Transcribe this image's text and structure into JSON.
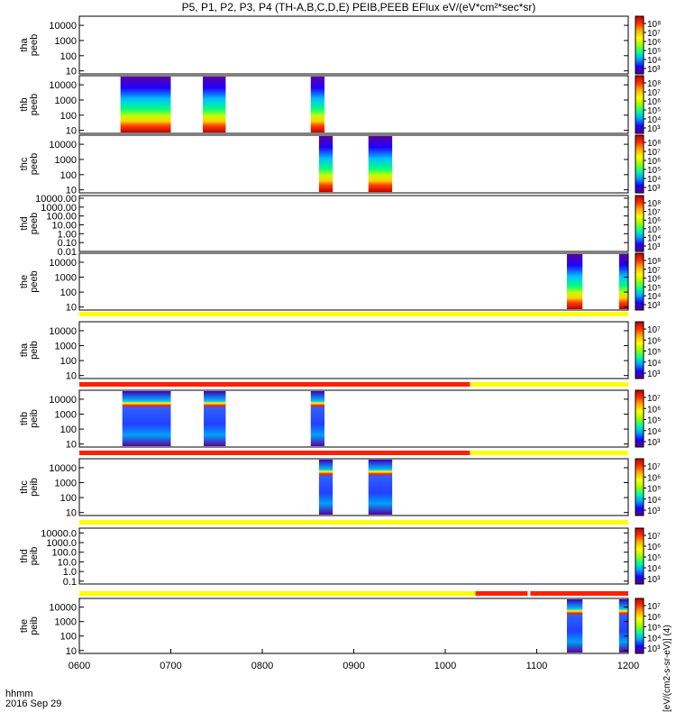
{
  "chart_data": {
    "type": "heatmap",
    "title": "P5, P1, P2, P3, P4 (TH-A,B,C,D,E) PEIB,PEEB EFlux eV/(eV*cm²*sec*sr)",
    "x_ticks": [
      "0600",
      "0700",
      "0800",
      "0900",
      "1000",
      "1100",
      "1200"
    ],
    "xlim": [
      600,
      1200
    ],
    "xlabel": "hhmm",
    "date": "2016 Sep 29",
    "colorbar_label": "[eV/(cm2-s-sr-eV)] (4)",
    "colormap": [
      "#5a0080",
      "#1a00ff",
      "#00a0ff",
      "#00ffa0",
      "#9aff00",
      "#ffff00",
      "#ffb000",
      "#ff3000",
      "#c00000"
    ],
    "panels": [
      {
        "name": "tha peeb",
        "ylabel": [
          "tha",
          "peeb"
        ],
        "yticks": [
          "10000",
          "1000",
          "100",
          "10"
        ],
        "ylog": [
          0.8,
          4.6
        ],
        "cbar_ticks": [
          "10⁸",
          "10⁷",
          "10⁶",
          "10⁵",
          "10⁴",
          "10³"
        ],
        "mode_bar": null,
        "blocks": []
      },
      {
        "name": "thb peeb",
        "ylabel": [
          "thb",
          "peeb"
        ],
        "yticks": [
          "10000",
          "1000",
          "100",
          "10"
        ],
        "ylog": [
          0.8,
          4.6
        ],
        "cbar_ticks": [
          "10⁸",
          "10⁷",
          "10⁶",
          "10⁵",
          "10⁴",
          "10³"
        ],
        "mode_bar": null,
        "blocks": [
          {
            "t0": 645,
            "t1": 700
          },
          {
            "t0": 735,
            "t1": 760
          },
          {
            "t0": 853,
            "t1": 868
          }
        ]
      },
      {
        "name": "thc peeb",
        "ylabel": [
          "thc",
          "peeb"
        ],
        "yticks": [
          "10000",
          "1000",
          "100",
          "10"
        ],
        "ylog": [
          0.8,
          4.6
        ],
        "cbar_ticks": [
          "10⁸",
          "10⁷",
          "10⁶",
          "10⁵",
          "10⁴",
          "10³"
        ],
        "mode_bar": null,
        "blocks": [
          {
            "t0": 862,
            "t1": 877
          },
          {
            "t0": 916,
            "t1": 942
          }
        ]
      },
      {
        "name": "thd peeb",
        "ylabel": [
          "thd",
          "peeb"
        ],
        "yticks": [
          "10000.00",
          "1000.00",
          "100.00",
          "10.00",
          "1.00",
          "0.10",
          "0.01"
        ],
        "ylog": [
          -2,
          4.3
        ],
        "cbar_ticks": [
          "10⁸",
          "10⁷",
          "10⁶",
          "10⁵",
          "10⁴",
          "10³"
        ],
        "mode_bar": null,
        "blocks": []
      },
      {
        "name": "the peeb",
        "ylabel": [
          "the",
          "peeb"
        ],
        "yticks": [
          "10000",
          "1000",
          "100",
          "10"
        ],
        "ylog": [
          0.8,
          4.6
        ],
        "cbar_ticks": [
          "10⁸",
          "10⁷",
          "10⁶",
          "10⁵",
          "10⁴",
          "10³"
        ],
        "mode_bar": null,
        "blocks": [
          {
            "t0": 1133,
            "t1": 1150
          },
          {
            "t0": 1190,
            "t1": 1200
          }
        ]
      },
      {
        "name": "tha peib",
        "ylabel": [
          "tha",
          "peib"
        ],
        "yticks": [
          "10000",
          "1000",
          "100",
          "10"
        ],
        "ylog": [
          0.8,
          4.6
        ],
        "cbar_ticks": [
          "10⁷",
          "10⁶",
          "10⁵",
          "10⁴",
          "10³"
        ],
        "mode_bar": [
          {
            "t0": 600,
            "t1": 1200,
            "color": "#ffff00"
          }
        ],
        "blocks": []
      },
      {
        "name": "thb peib",
        "ylabel": [
          "thb",
          "peib"
        ],
        "yticks": [
          "10000",
          "1000",
          "100",
          "10"
        ],
        "ylog": [
          0.8,
          4.6
        ],
        "cbar_ticks": [
          "10⁷",
          "10⁶",
          "10⁵",
          "10⁴",
          "10³"
        ],
        "mode_bar": [
          {
            "t0": 600,
            "t1": 1027,
            "color": "#ff2000"
          },
          {
            "t0": 1027,
            "t1": 1200,
            "color": "#ffff00"
          }
        ],
        "blocks": [
          {
            "t0": 647,
            "t1": 700
          },
          {
            "t0": 736,
            "t1": 760
          },
          {
            "t0": 853,
            "t1": 868
          }
        ]
      },
      {
        "name": "thc peib",
        "ylabel": [
          "thc",
          "peib"
        ],
        "yticks": [
          "10000",
          "1000",
          "100",
          "10"
        ],
        "ylog": [
          0.8,
          4.6
        ],
        "cbar_ticks": [
          "10⁷",
          "10⁶",
          "10⁵",
          "10⁴",
          "10³"
        ],
        "mode_bar": [
          {
            "t0": 600,
            "t1": 1027,
            "color": "#ff2000"
          },
          {
            "t0": 1027,
            "t1": 1200,
            "color": "#ffff00"
          }
        ],
        "blocks": [
          {
            "t0": 862,
            "t1": 877
          },
          {
            "t0": 916,
            "t1": 942
          }
        ]
      },
      {
        "name": "thd peib",
        "ylabel": [
          "thd",
          "peib"
        ],
        "yticks": [
          "10000.0",
          "1000.0",
          "100.0",
          "10.0",
          "1.0",
          "0.1"
        ],
        "ylog": [
          -1.3,
          4.5
        ],
        "cbar_ticks": [
          "10⁷",
          "10⁶",
          "10⁵",
          "10⁴",
          "10³"
        ],
        "mode_bar": [
          {
            "t0": 600,
            "t1": 1200,
            "color": "#ffff00"
          }
        ],
        "blocks": []
      },
      {
        "name": "the peib",
        "ylabel": [
          "the",
          "peib"
        ],
        "yticks": [
          "10000",
          "1000",
          "100",
          "10"
        ],
        "ylog": [
          0.8,
          4.6
        ],
        "cbar_ticks": [
          "10⁷",
          "10⁶",
          "10⁵",
          "10⁴",
          "10³"
        ],
        "mode_bar": [
          {
            "t0": 600,
            "t1": 1033,
            "color": "#ffff00"
          },
          {
            "t0": 1033,
            "t1": 1090,
            "color": "#ff2000"
          },
          {
            "t0": 1093,
            "t1": 1200,
            "color": "#ff2000"
          }
        ],
        "blocks": [
          {
            "t0": 1133,
            "t1": 1150
          },
          {
            "t0": 1190,
            "t1": 1200
          }
        ]
      }
    ]
  }
}
